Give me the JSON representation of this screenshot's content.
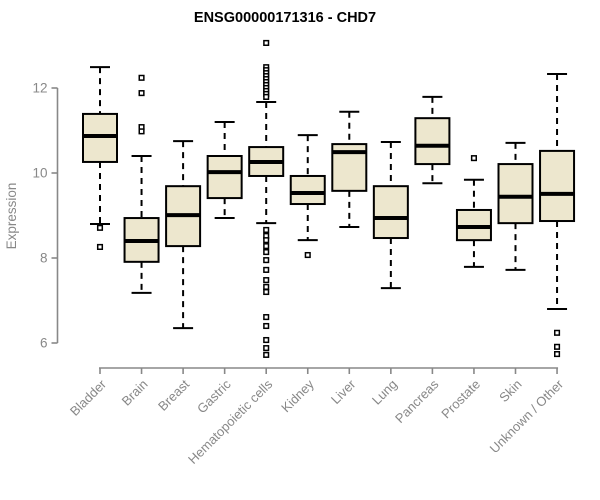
{
  "chart_data": {
    "type": "boxplot",
    "title": "ENSG00000171316 - CHD7",
    "ylabel": "Expression",
    "xlabel": "",
    "yticks": [
      6,
      8,
      10,
      12
    ],
    "ylim": [
      5.5,
      13.3
    ],
    "grid": false,
    "legend": "none",
    "colors": {
      "box_fill": "#EDE7CE",
      "box_stroke": "#000000",
      "median": "#000000",
      "whisker": "#000000",
      "axis": "#888888",
      "tick_text": "#888888",
      "title_text": "#000000",
      "background": "#ffffff"
    },
    "categories": [
      "Bladder",
      "Brain",
      "Breast",
      "Gastric",
      "Hematopoietic cells",
      "Kidney",
      "Liver",
      "Lung",
      "Pancreas",
      "Prostate",
      "Skin",
      "Unknown / Other"
    ],
    "boxes": [
      {
        "category": "Bladder",
        "whisker_low": 8.8,
        "q1": 10.26,
        "median": 10.87,
        "q3": 11.39,
        "whisker_high": 12.49,
        "outliers": [
          8.71,
          8.26
        ]
      },
      {
        "category": "Brain",
        "whisker_low": 7.18,
        "q1": 7.91,
        "median": 8.4,
        "q3": 8.94,
        "whisker_high": 10.4,
        "outliers": [
          12.24,
          11.88,
          11.08,
          10.98
        ]
      },
      {
        "category": "Breast",
        "whisker_low": 6.35,
        "q1": 8.28,
        "median": 9.01,
        "q3": 9.69,
        "whisker_high": 10.75,
        "outliers": []
      },
      {
        "category": "Gastric",
        "whisker_low": 8.94,
        "q1": 9.41,
        "median": 10.02,
        "q3": 10.4,
        "whisker_high": 11.2,
        "outliers": []
      },
      {
        "category": "Hematopoietic cells",
        "whisker_low": 8.82,
        "q1": 9.93,
        "median": 10.26,
        "q3": 10.61,
        "whisker_high": 11.67,
        "outliers": [
          13.06,
          12.49,
          12.42,
          12.35,
          12.28,
          12.21,
          12.14,
          12.07,
          12.0,
          11.93,
          11.86,
          11.79,
          8.66,
          8.52,
          8.42,
          8.28,
          8.14,
          7.95,
          7.72,
          7.48,
          7.32,
          7.2,
          6.61,
          6.4,
          6.07,
          5.88,
          5.72
        ]
      },
      {
        "category": "Kidney",
        "whisker_low": 8.42,
        "q1": 9.27,
        "median": 9.53,
        "q3": 9.93,
        "whisker_high": 10.89,
        "outliers": [
          8.07
        ]
      },
      {
        "category": "Liver",
        "whisker_low": 8.73,
        "q1": 9.58,
        "median": 10.49,
        "q3": 10.68,
        "whisker_high": 11.44,
        "outliers": []
      },
      {
        "category": "Lung",
        "whisker_low": 7.29,
        "q1": 8.47,
        "median": 8.94,
        "q3": 9.69,
        "whisker_high": 10.73,
        "outliers": []
      },
      {
        "category": "Pancreas",
        "whisker_low": 9.76,
        "q1": 10.21,
        "median": 10.64,
        "q3": 11.29,
        "whisker_high": 11.79,
        "outliers": []
      },
      {
        "category": "Prostate",
        "whisker_low": 7.79,
        "q1": 8.42,
        "median": 8.73,
        "q3": 9.13,
        "whisker_high": 9.84,
        "outliers": [
          10.35
        ]
      },
      {
        "category": "Skin",
        "whisker_low": 7.72,
        "q1": 8.82,
        "median": 9.44,
        "q3": 10.21,
        "whisker_high": 10.71,
        "outliers": []
      },
      {
        "category": "Unknown / Other",
        "whisker_low": 6.8,
        "q1": 8.87,
        "median": 9.51,
        "q3": 10.52,
        "whisker_high": 12.33,
        "outliers": [
          6.24,
          5.91,
          5.74
        ]
      }
    ]
  }
}
